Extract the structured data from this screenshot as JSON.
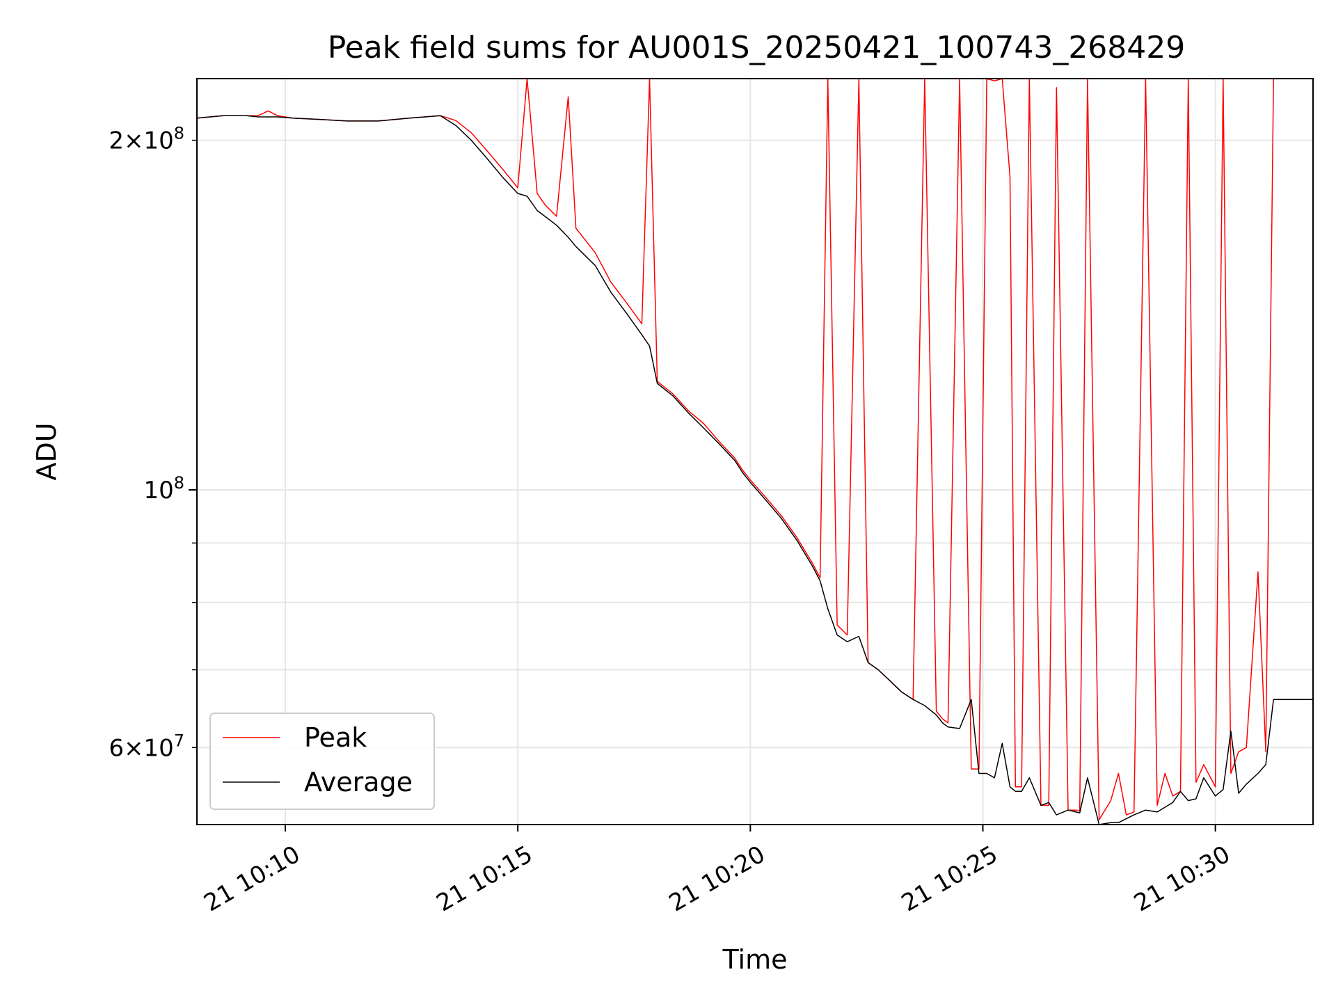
{
  "chart_data": {
    "type": "line",
    "title": "Peak field sums for AU001S_20250421_100743_268429",
    "xlabel": "Time",
    "ylabel": "ADU",
    "y_scale": "log",
    "xlim": [
      "2025-04-21 10:08:06",
      "2025-04-21 10:32:06"
    ],
    "ylim": [
      51500000,
      226000000
    ],
    "xticks": [
      {
        "t": "2025-04-21 10:10:00",
        "label": "21 10:10"
      },
      {
        "t": "2025-04-21 10:15:00",
        "label": "21 10:15"
      },
      {
        "t": "2025-04-21 10:20:00",
        "label": "21 10:20"
      },
      {
        "t": "2025-04-21 10:25:00",
        "label": "21 10:25"
      },
      {
        "t": "2025-04-21 10:30:00",
        "label": "21 10:30"
      }
    ],
    "yticks_major": [
      {
        "value": 100000000,
        "base": "10",
        "exp": "8"
      }
    ],
    "yticks_minor": [
      {
        "value": 60000000,
        "mantissa": "6",
        "base": "10",
        "exp": "7"
      },
      {
        "value": 200000000,
        "mantissa": "2",
        "base": "10",
        "exp": "8"
      }
    ],
    "yticks_minor_unlabeled": [
      70000000,
      80000000,
      90000000
    ],
    "grid": true,
    "legend_position": "lower left",
    "series": [
      {
        "name": "Peak",
        "color": "#ff0000",
        "x": [
          "10:08:06",
          "10:08:40",
          "10:09:10",
          "10:09:25",
          "10:09:38",
          "10:09:50",
          "10:10:10",
          "10:10:40",
          "10:11:20",
          "10:12:00",
          "10:12:40",
          "10:13:20",
          "10:13:40",
          "10:14:00",
          "10:14:20",
          "10:14:40",
          "10:15:00",
          "10:15:12",
          "10:15:25",
          "10:15:35",
          "10:15:50",
          "10:16:05",
          "10:16:15",
          "10:16:40",
          "10:17:00",
          "10:17:20",
          "10:17:40",
          "10:17:50",
          "10:18:00",
          "10:18:20",
          "10:18:40",
          "10:19:00",
          "10:19:20",
          "10:19:40",
          "10:19:50",
          "10:20:00",
          "10:20:20",
          "10:20:40",
          "10:21:00",
          "10:21:20",
          "10:21:30",
          "10:21:40",
          "10:21:52",
          "10:22:05",
          "10:22:20",
          "10:22:32",
          "10:22:45",
          "10:23:00",
          "10:23:15",
          "10:23:30",
          "10:23:45",
          "10:24:00",
          "10:24:08",
          "10:24:15",
          "10:24:30",
          "10:24:45",
          "10:24:55",
          "10:25:05",
          "10:25:15",
          "10:25:25",
          "10:25:35",
          "10:25:42",
          "10:25:50",
          "10:26:00",
          "10:26:15",
          "10:26:25",
          "10:26:35",
          "10:26:50",
          "10:27:00",
          "10:27:05",
          "10:27:15",
          "10:27:30",
          "10:27:45",
          "10:27:55",
          "10:28:05",
          "10:28:15",
          "10:28:30",
          "10:28:45",
          "10:28:55",
          "10:29:05",
          "10:29:15",
          "10:29:25",
          "10:29:35",
          "10:29:45",
          "10:30:00",
          "10:30:10",
          "10:30:20",
          "10:30:30",
          "10:30:40",
          "10:30:55",
          "10:31:05",
          "10:31:15",
          "10:31:30",
          "10:32:06"
        ],
        "y": [
          209000000,
          210000000,
          210000000,
          210000000,
          212000000,
          210000000,
          209000000,
          208500000,
          207800000,
          207800000,
          209000000,
          210000000,
          208000000,
          203000000,
          196000000,
          189000000,
          182000000,
          226000000,
          180000000,
          176000000,
          172000000,
          218000000,
          168000000,
          160000000,
          151000000,
          145000000,
          139000000,
          226000000,
          124000000,
          121000000,
          117000000,
          114000000,
          110000000,
          106500000,
          104000000,
          102000000,
          98500000,
          95000000,
          91000000,
          86500000,
          84000000,
          226000000,
          76500000,
          75000000,
          226000000,
          71000000,
          70000000,
          68500000,
          67000000,
          66000000,
          226000000,
          64500000,
          63500000,
          63000000,
          226000000,
          57500000,
          57500000,
          226000000,
          225000000,
          226000000,
          186000000,
          55500000,
          55500000,
          226000000,
          53500000,
          53500000,
          222000000,
          53000000,
          53000000,
          52900000,
          226000000,
          52000000,
          54000000,
          57000000,
          52500000,
          52800000,
          226000000,
          53500000,
          57000000,
          54500000,
          55000000,
          226000000,
          56000000,
          58000000,
          55500000,
          226000000,
          57000000,
          59500000,
          60000000,
          85000000,
          59500000,
          226000000,
          226000000,
          226000000
        ]
      },
      {
        "name": "Average",
        "color": "#000000",
        "x": [
          "10:08:06",
          "10:08:40",
          "10:09:10",
          "10:09:25",
          "10:09:38",
          "10:09:50",
          "10:10:10",
          "10:10:40",
          "10:11:20",
          "10:12:00",
          "10:12:40",
          "10:13:20",
          "10:13:40",
          "10:14:00",
          "10:14:20",
          "10:14:40",
          "10:15:00",
          "10:15:12",
          "10:15:25",
          "10:15:35",
          "10:15:50",
          "10:16:05",
          "10:16:15",
          "10:16:40",
          "10:17:00",
          "10:17:20",
          "10:17:40",
          "10:17:50",
          "10:18:00",
          "10:18:20",
          "10:18:40",
          "10:19:00",
          "10:19:20",
          "10:19:40",
          "10:19:50",
          "10:20:00",
          "10:20:20",
          "10:20:40",
          "10:21:00",
          "10:21:20",
          "10:21:30",
          "10:21:40",
          "10:21:52",
          "10:22:05",
          "10:22:20",
          "10:22:32",
          "10:22:45",
          "10:23:00",
          "10:23:15",
          "10:23:30",
          "10:23:45",
          "10:24:00",
          "10:24:08",
          "10:24:15",
          "10:24:30",
          "10:24:45",
          "10:24:55",
          "10:25:05",
          "10:25:15",
          "10:25:25",
          "10:25:35",
          "10:25:42",
          "10:25:50",
          "10:26:00",
          "10:26:15",
          "10:26:25",
          "10:26:35",
          "10:26:50",
          "10:27:00",
          "10:27:05",
          "10:27:15",
          "10:27:30",
          "10:27:45",
          "10:27:55",
          "10:28:05",
          "10:28:15",
          "10:28:30",
          "10:28:45",
          "10:28:55",
          "10:29:05",
          "10:29:15",
          "10:29:25",
          "10:29:35",
          "10:29:45",
          "10:30:00",
          "10:30:10",
          "10:30:20",
          "10:30:30",
          "10:30:40",
          "10:30:55",
          "10:31:05",
          "10:31:15",
          "10:31:30",
          "10:32:06"
        ],
        "y": [
          209000000,
          210000000,
          210000000,
          209500000,
          209500000,
          209500000,
          209000000,
          208500000,
          207800000,
          207800000,
          209000000,
          210000000,
          206000000,
          200000000,
          193000000,
          186000000,
          180000000,
          179000000,
          174000000,
          172000000,
          169000000,
          165000000,
          162000000,
          156000000,
          148000000,
          142000000,
          136000000,
          133000000,
          123500000,
          120500000,
          116500000,
          113000000,
          109500000,
          106000000,
          103500000,
          101500000,
          98000000,
          94500000,
          90500000,
          86000000,
          83500000,
          79000000,
          75000000,
          74000000,
          74800000,
          71000000,
          70000000,
          68500000,
          67000000,
          66000000,
          65200000,
          64000000,
          63000000,
          62500000,
          62300000,
          66000000,
          57000000,
          57000000,
          56500000,
          60500000,
          55500000,
          55000000,
          55000000,
          56500000,
          53500000,
          53800000,
          52500000,
          53000000,
          52800000,
          52700000,
          56500000,
          51500000,
          51700000,
          51700000,
          52100000,
          52500000,
          53000000,
          52800000,
          53300000,
          53800000,
          55000000,
          54000000,
          54200000,
          56500000,
          54500000,
          55200000,
          62000000,
          54800000,
          55800000,
          57000000,
          58000000,
          66000000,
          66000000,
          66000000
        ]
      }
    ]
  }
}
